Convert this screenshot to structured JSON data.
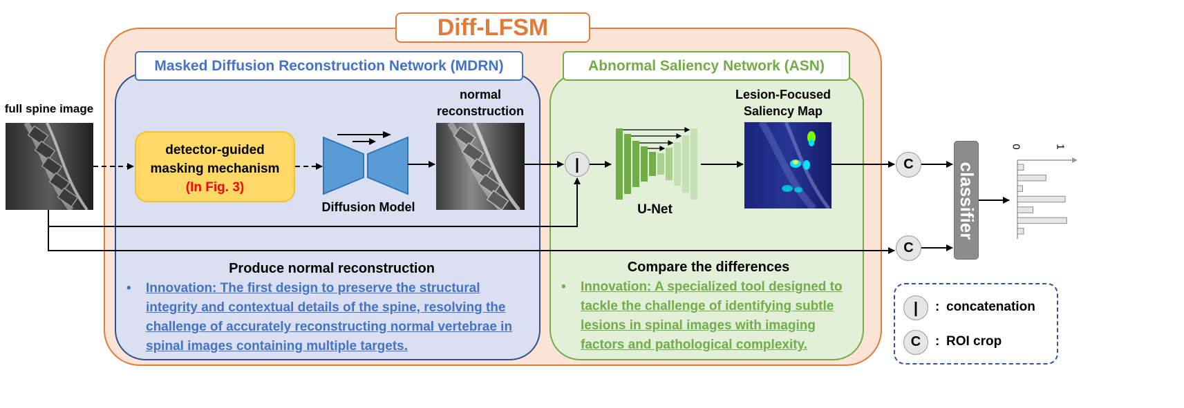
{
  "main_title": "Diff-LFSM",
  "input": {
    "label": "full spine image"
  },
  "mdrn": {
    "title": "Masked Diffusion Reconstruction Network (MDRN)",
    "masking_box": {
      "line1": "detector-guided",
      "line2": "masking mechanism",
      "ref": "(In Fig. 3)"
    },
    "diffusion_label": "Diffusion Model",
    "recon_label_1": "normal",
    "recon_label_2": "reconstruction",
    "summary_heading": "Produce normal reconstruction",
    "innovation": "Innovation: The first design to preserve the structural integrity and contextual details of the spine, resolving the challenge of accurately reconstructing normal vertebrae in spinal images containing multiple targets."
  },
  "asn": {
    "title": "Abnormal Saliency Network (ASN)",
    "unet_label": "U-Net",
    "saliency_label_1": "Lesion-Focused",
    "saliency_label_2": "Saliency Map",
    "summary_heading": "Compare the differences",
    "innovation": "Innovation: A specialized tool designed to tackle the challenge of identifying subtle lesions in spinal images with imaging factors and pathological complexity."
  },
  "concat_symbol": "|",
  "crop_symbol": "C",
  "classifier_label": "classifier",
  "output_axis": {
    "start": "0",
    "end": "1",
    "bar_values": [
      0.12,
      0.55,
      0.1,
      0.92,
      0.3,
      0.95,
      0.12
    ]
  },
  "legend": {
    "concat_symbol": "|",
    "concat_text": "concatenation",
    "crop_symbol": "C",
    "crop_text": "ROI crop"
  },
  "colors": {
    "outer_fill": "#fbe3d5",
    "outer_border": "#e07b39",
    "title": "#e07b39",
    "mdrn_fill": "#dae0f2",
    "mdrn_border": "#2f4f8f",
    "mdrn_text": "#4472c4",
    "asn_fill": "#e2efd9",
    "asn_border": "#70ad47",
    "asn_text": "#70ad47",
    "mask_fill": "#ffd966",
    "ref_text": "#ff0000",
    "diffusion_fill": "#5b9bd5"
  }
}
